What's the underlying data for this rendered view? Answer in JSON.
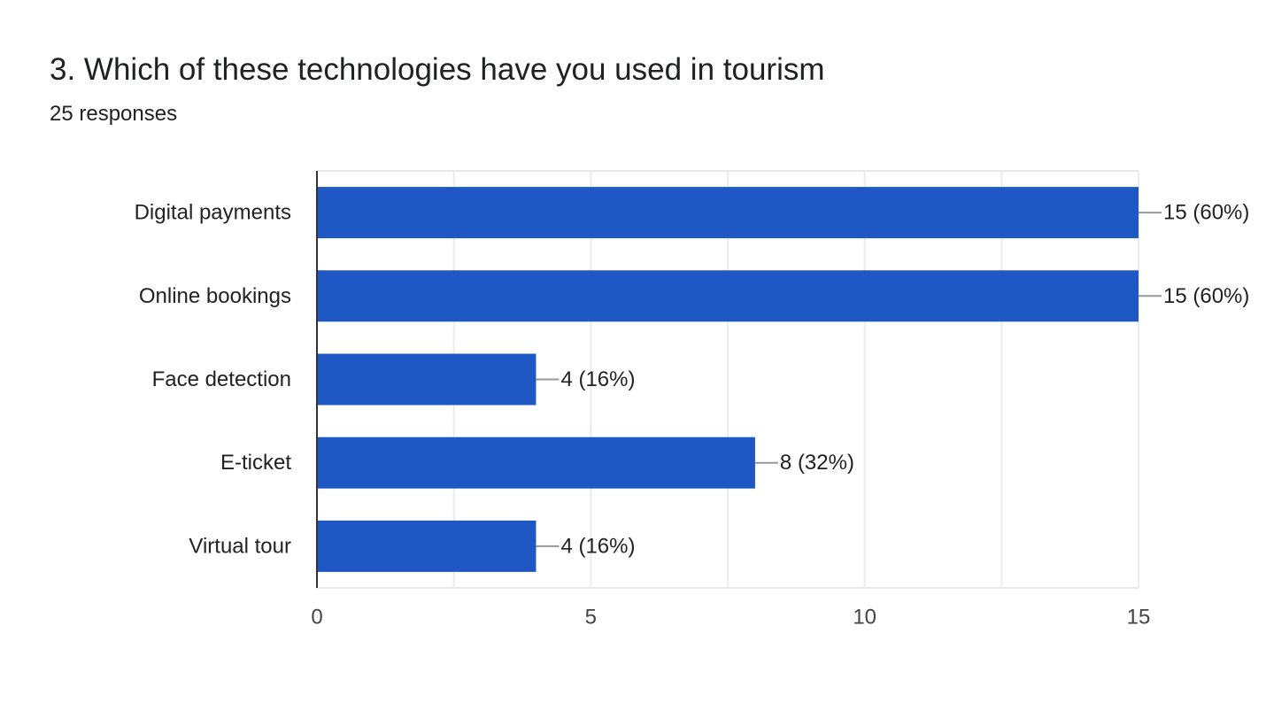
{
  "question": {
    "title": "3. Which of these technologies have you used in tourism",
    "responses": "25 responses"
  },
  "chart_data": {
    "type": "bar",
    "orientation": "horizontal",
    "categories": [
      "Digital payments",
      "Online bookings",
      "Face detection",
      "E-ticket",
      "Virtual tour"
    ],
    "values": [
      15,
      15,
      4,
      8,
      4
    ],
    "value_labels": [
      "15 (60%)",
      "15 (60%)",
      "4 (16%)",
      "8 (32%)",
      "4 (16%)"
    ],
    "xlim": [
      0,
      15
    ],
    "xticks": [
      0,
      5,
      10,
      15
    ],
    "grid": true,
    "legend": "none",
    "bar_color": "#1f58c5"
  }
}
